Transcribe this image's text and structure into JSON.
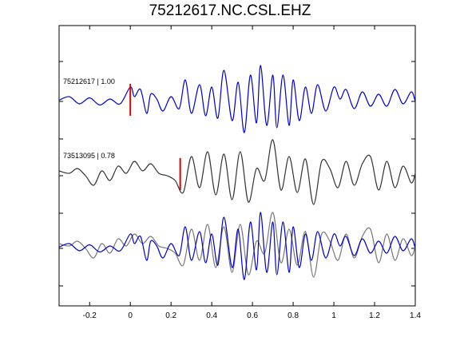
{
  "chart_data": {
    "type": "line",
    "title": "75212617.NC.CSL.EHZ",
    "xlabel": "",
    "ylabel": "",
    "xlim": [
      -0.35,
      1.4
    ],
    "xticks": [
      -0.2,
      0,
      0.2,
      0.4,
      0.6,
      0.8,
      1,
      1.2,
      1.4
    ],
    "xtick_labels": [
      "-0.2",
      "0",
      "0.2",
      "0.4",
      "0.6",
      "0.8",
      "1",
      "1.2",
      "1.4"
    ],
    "grid": false,
    "series": [
      {
        "name": "75212617 | 1.00",
        "color": "#0000cc",
        "pick_time": 0.0,
        "pick_color": "#dd0000",
        "x": [
          -0.35,
          -0.3,
          -0.25,
          -0.2,
          -0.15,
          -0.1,
          -0.05,
          0,
          0.02,
          0.05,
          0.08,
          0.1,
          0.13,
          0.16,
          0.2,
          0.24,
          0.27,
          0.3,
          0.34,
          0.37,
          0.4,
          0.43,
          0.46,
          0.5,
          0.53,
          0.56,
          0.59,
          0.62,
          0.64,
          0.67,
          0.7,
          0.72,
          0.75,
          0.78,
          0.8,
          0.83,
          0.86,
          0.89,
          0.92,
          0.96,
          1.0,
          1.03,
          1.06,
          1.1,
          1.14,
          1.18,
          1.22,
          1.26,
          1.3,
          1.34,
          1.38,
          1.4
        ],
        "y": [
          0.05,
          0.2,
          -0.1,
          0.15,
          -0.15,
          0.1,
          -0.1,
          0.6,
          0.2,
          0.5,
          -0.5,
          0.3,
          0.1,
          -0.4,
          0.2,
          -0.3,
          0.9,
          -0.5,
          0.7,
          -0.6,
          0.6,
          -0.7,
          1.3,
          -0.8,
          0.8,
          -1.3,
          1.1,
          -0.9,
          1.5,
          -1.0,
          1.1,
          -1.1,
          1.1,
          -1.0,
          0.9,
          -0.8,
          0.6,
          -0.5,
          0.7,
          -0.4,
          0.6,
          0.1,
          0.5,
          -0.3,
          0.4,
          -0.2,
          0.3,
          -0.2,
          0.5,
          -0.1,
          0.4,
          0.0
        ]
      },
      {
        "name": "73513095 | 0.78",
        "color": "#333333",
        "pick_time": 0.245,
        "pick_color": "#dd0000",
        "x": [
          -0.35,
          -0.3,
          -0.26,
          -0.22,
          -0.18,
          -0.14,
          -0.1,
          -0.06,
          -0.02,
          0.02,
          0.06,
          0.1,
          0.14,
          0.18,
          0.22,
          0.26,
          0.3,
          0.34,
          0.38,
          0.42,
          0.46,
          0.5,
          0.54,
          0.58,
          0.62,
          0.66,
          0.7,
          0.74,
          0.78,
          0.82,
          0.86,
          0.9,
          0.94,
          0.98,
          1.02,
          1.06,
          1.1,
          1.14,
          1.18,
          1.22,
          1.26,
          1.3,
          1.34,
          1.38,
          1.4
        ],
        "y": [
          0.2,
          0.1,
          0.3,
          0.0,
          -0.4,
          0.2,
          -0.2,
          0.4,
          0.1,
          0.6,
          0.2,
          0.5,
          0.1,
          0.0,
          -0.2,
          -0.7,
          0.8,
          -0.5,
          1.0,
          -0.8,
          0.9,
          -1.0,
          1.0,
          -1.1,
          0.3,
          -0.2,
          1.5,
          -0.6,
          0.8,
          -0.7,
          0.7,
          -1.2,
          0.6,
          0.3,
          -0.5,
          0.6,
          -0.4,
          0.5,
          0.8,
          -0.6,
          0.6,
          -0.5,
          0.4,
          -0.3,
          0.1
        ]
      },
      {
        "name": "",
        "color": "#0000cc",
        "x": [
          -0.35,
          -0.3,
          -0.25,
          -0.2,
          -0.15,
          -0.1,
          -0.05,
          0,
          0.02,
          0.05,
          0.08,
          0.1,
          0.13,
          0.16,
          0.2,
          0.24,
          0.27,
          0.3,
          0.34,
          0.37,
          0.4,
          0.43,
          0.46,
          0.5,
          0.53,
          0.56,
          0.59,
          0.62,
          0.64,
          0.67,
          0.7,
          0.72,
          0.75,
          0.78,
          0.8,
          0.83,
          0.86,
          0.89,
          0.92,
          0.96,
          1.0,
          1.03,
          1.06,
          1.1,
          1.14,
          1.18,
          1.22,
          1.26,
          1.3,
          1.34,
          1.38,
          1.4
        ],
        "y": [
          0.05,
          0.2,
          -0.1,
          0.15,
          -0.15,
          0.1,
          -0.1,
          0.6,
          0.2,
          0.5,
          -0.5,
          0.3,
          0.1,
          -0.4,
          0.2,
          -0.3,
          0.9,
          -0.5,
          0.7,
          -0.6,
          0.6,
          -0.7,
          1.3,
          -0.8,
          0.8,
          -1.3,
          1.1,
          -0.9,
          1.5,
          -1.0,
          1.1,
          -1.1,
          1.1,
          -1.0,
          0.9,
          -0.8,
          0.6,
          -0.5,
          0.7,
          -0.4,
          0.6,
          0.1,
          0.5,
          -0.3,
          0.4,
          -0.2,
          0.3,
          -0.2,
          0.5,
          -0.1,
          0.4,
          0.0
        ]
      },
      {
        "name": "",
        "color": "#777777",
        "x": [
          -0.35,
          -0.3,
          -0.26,
          -0.22,
          -0.18,
          -0.14,
          -0.1,
          -0.06,
          -0.02,
          0.02,
          0.06,
          0.1,
          0.14,
          0.18,
          0.22,
          0.26,
          0.3,
          0.34,
          0.38,
          0.42,
          0.46,
          0.5,
          0.54,
          0.58,
          0.62,
          0.66,
          0.7,
          0.74,
          0.78,
          0.82,
          0.86,
          0.9,
          0.94,
          0.98,
          1.02,
          1.06,
          1.1,
          1.14,
          1.18,
          1.22,
          1.26,
          1.3,
          1.34,
          1.38,
          1.4
        ],
        "y": [
          0.2,
          0.1,
          0.3,
          0.0,
          -0.4,
          0.2,
          -0.2,
          0.4,
          0.1,
          0.6,
          0.2,
          0.5,
          0.1,
          0.0,
          -0.2,
          -0.7,
          0.8,
          -0.5,
          1.0,
          -0.8,
          0.9,
          -1.0,
          1.0,
          -1.1,
          0.3,
          -0.2,
          1.5,
          -0.6,
          0.8,
          -0.7,
          0.7,
          -1.2,
          0.6,
          0.3,
          -0.5,
          0.6,
          -0.4,
          0.5,
          0.8,
          -0.6,
          0.6,
          -0.5,
          0.4,
          -0.3,
          0.1
        ]
      }
    ],
    "panels": [
      {
        "label": "75212617 | 1.00",
        "series": [
          0
        ]
      },
      {
        "label": "73513095 | 0.78",
        "series": [
          1
        ]
      },
      {
        "label": "",
        "series": [
          2,
          3
        ]
      }
    ]
  }
}
